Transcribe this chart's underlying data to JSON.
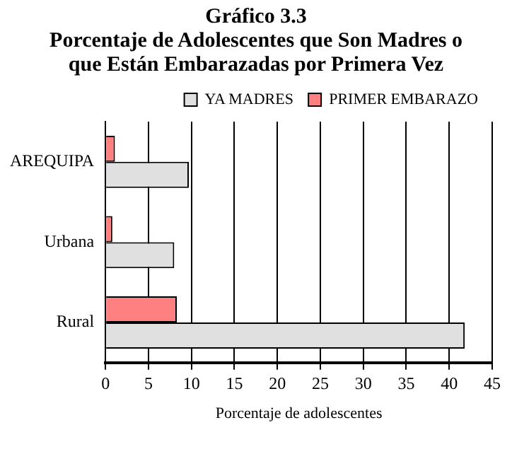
{
  "chart_data": {
    "type": "bar",
    "orientation": "horizontal",
    "title": "Gráfico 3.3",
    "subtitle": "Porcentaje de Adolescentes que Son Madres o que Están Embarazadas por Primera Vez",
    "xlabel": "Porcentaje de adolescentes",
    "categories": [
      "AREQUIPA",
      "Urbana",
      "Rural"
    ],
    "series": [
      {
        "name": "PRIMER EMBARAZO",
        "color": "#ff8080",
        "values": [
          1.1,
          0.8,
          8.3
        ]
      },
      {
        "name": "YA MADRES",
        "color": "#e0e0e0",
        "values": [
          9.7,
          8.0,
          41.8
        ]
      }
    ],
    "xlim": [
      0,
      45
    ],
    "xticks": [
      0,
      5,
      10,
      15,
      20,
      25,
      30,
      35,
      40,
      45
    ],
    "grid": "x",
    "legend": "top right"
  }
}
